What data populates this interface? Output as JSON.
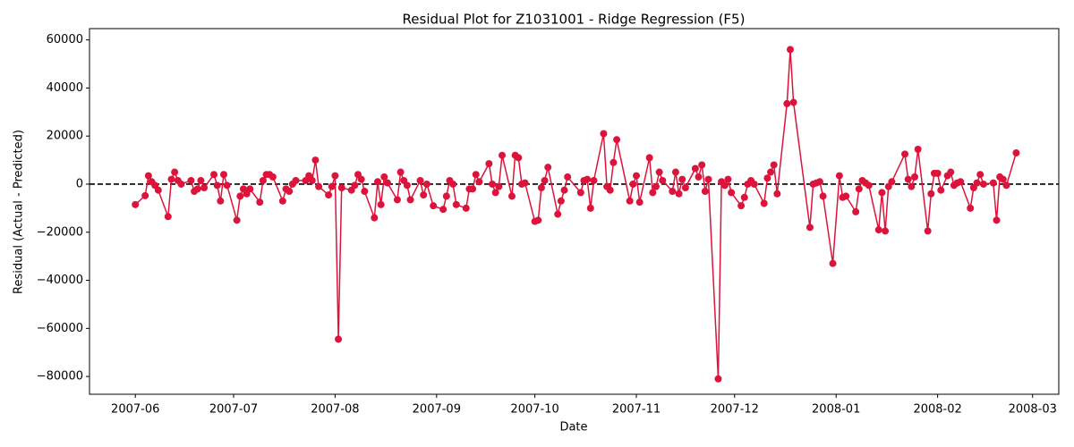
{
  "chart_data": {
    "type": "line",
    "title": "Residual Plot for Z1031001 - Ridge Regression (F5)",
    "x_label": "Date",
    "y_label": "Residual (Actual - Predicted)",
    "color": "#dc143c",
    "hline": 0,
    "xlim": [
      "2007-05-18",
      "2008-03-09"
    ],
    "xticks": [
      "2007-06",
      "2007-07",
      "2007-08",
      "2007-09",
      "2007-10",
      "2007-11",
      "2007-12",
      "2008-01",
      "2008-02",
      "2008-03"
    ],
    "ylim": [
      -87400,
      64700
    ],
    "yticks": [
      {
        "value": -80000,
        "label": "−80000"
      },
      {
        "value": -60000,
        "label": "−60000"
      },
      {
        "value": -40000,
        "label": "−40000"
      },
      {
        "value": -20000,
        "label": "−20000"
      },
      0,
      20000,
      40000,
      60000
    ],
    "x": [
      "2007-06-01",
      "2007-06-04",
      "2007-06-05",
      "2007-06-06",
      "2007-06-07",
      "2007-06-08",
      "2007-06-11",
      "2007-06-12",
      "2007-06-13",
      "2007-06-14",
      "2007-06-15",
      "2007-06-18",
      "2007-06-19",
      "2007-06-20",
      "2007-06-21",
      "2007-06-22",
      "2007-06-25",
      "2007-06-26",
      "2007-06-27",
      "2007-06-28",
      "2007-06-29",
      "2007-07-02",
      "2007-07-03",
      "2007-07-04",
      "2007-07-05",
      "2007-07-06",
      "2007-07-09",
      "2007-07-10",
      "2007-07-11",
      "2007-07-12",
      "2007-07-13",
      "2007-07-16",
      "2007-07-17",
      "2007-07-18",
      "2007-07-19",
      "2007-07-20",
      "2007-07-23",
      "2007-07-24",
      "2007-07-25",
      "2007-07-26",
      "2007-07-27",
      "2007-07-30",
      "2007-07-31",
      "2007-08-01",
      "2007-08-02",
      "2007-08-03",
      "2007-08-06",
      "2007-08-07",
      "2007-08-08",
      "2007-08-09",
      "2007-08-10",
      "2007-08-13",
      "2007-08-14",
      "2007-08-15",
      "2007-08-16",
      "2007-08-17",
      "2007-08-20",
      "2007-08-21",
      "2007-08-22",
      "2007-08-23",
      "2007-08-24",
      "2007-08-27",
      "2007-08-28",
      "2007-08-29",
      "2007-08-31",
      "2007-09-03",
      "2007-09-04",
      "2007-09-05",
      "2007-09-06",
      "2007-09-07",
      "2007-09-10",
      "2007-09-11",
      "2007-09-12",
      "2007-09-13",
      "2007-09-14",
      "2007-09-17",
      "2007-09-18",
      "2007-09-19",
      "2007-09-20",
      "2007-09-21",
      "2007-09-24",
      "2007-09-25",
      "2007-09-26",
      "2007-09-27",
      "2007-09-28",
      "2007-10-01",
      "2007-10-02",
      "2007-10-03",
      "2007-10-04",
      "2007-10-05",
      "2007-10-08",
      "2007-10-09",
      "2007-10-10",
      "2007-10-11",
      "2007-10-15",
      "2007-10-16",
      "2007-10-17",
      "2007-10-18",
      "2007-10-19",
      "2007-10-22",
      "2007-10-23",
      "2007-10-24",
      "2007-10-25",
      "2007-10-26",
      "2007-10-30",
      "2007-10-31",
      "2007-11-01",
      "2007-11-02",
      "2007-11-05",
      "2007-11-06",
      "2007-11-07",
      "2007-11-08",
      "2007-11-09",
      "2007-11-12",
      "2007-11-13",
      "2007-11-14",
      "2007-11-15",
      "2007-11-16",
      "2007-11-19",
      "2007-11-20",
      "2007-11-21",
      "2007-11-22",
      "2007-11-23",
      "2007-11-26",
      "2007-11-27",
      "2007-11-28",
      "2007-11-29",
      "2007-11-30",
      "2007-12-03",
      "2007-12-04",
      "2007-12-05",
      "2007-12-06",
      "2007-12-07",
      "2007-12-10",
      "2007-12-11",
      "2007-12-12",
      "2007-12-13",
      "2007-12-14",
      "2007-12-17",
      "2007-12-18",
      "2007-12-19",
      "2007-12-24",
      "2007-12-25",
      "2007-12-26",
      "2007-12-27",
      "2007-12-28",
      "2007-12-31",
      "2008-01-02",
      "2008-01-03",
      "2008-01-04",
      "2008-01-07",
      "2008-01-08",
      "2008-01-09",
      "2008-01-10",
      "2008-01-11",
      "2008-01-14",
      "2008-01-15",
      "2008-01-16",
      "2008-01-17",
      "2008-01-18",
      "2008-01-22",
      "2008-01-23",
      "2008-01-24",
      "2008-01-25",
      "2008-01-26",
      "2008-01-29",
      "2008-01-30",
      "2008-01-31",
      "2008-02-01",
      "2008-02-02",
      "2008-02-04",
      "2008-02-05",
      "2008-02-06",
      "2008-02-07",
      "2008-02-08",
      "2008-02-11",
      "2008-02-12",
      "2008-02-13",
      "2008-02-14",
      "2008-02-15",
      "2008-02-18",
      "2008-02-19",
      "2008-02-20",
      "2008-02-21",
      "2008-02-22",
      "2008-02-25"
    ],
    "values": [
      -8500,
      -4800,
      3500,
      1000,
      -500,
      -2500,
      -13500,
      2000,
      5000,
      1500,
      0,
      1500,
      -3000,
      -2000,
      1500,
      -1500,
      4000,
      -500,
      -7000,
      4000,
      -500,
      -15000,
      -5000,
      -2000,
      -4000,
      -2000,
      -7500,
      1500,
      4000,
      4000,
      3000,
      -7000,
      -2000,
      -3000,
      0,
      1500,
      1500,
      3500,
      1500,
      10000,
      -1000,
      -4500,
      -1000,
      3500,
      -64500,
      -1500,
      -2500,
      -500,
      4000,
      2000,
      -3000,
      -14000,
      1000,
      -8500,
      3000,
      500,
      -6500,
      5000,
      1500,
      -500,
      -6500,
      1500,
      -4500,
      0,
      -9000,
      -10500,
      -5000,
      1500,
      0,
      -8500,
      -10000,
      -2000,
      -2000,
      4000,
      1000,
      8500,
      0,
      -3500,
      -1000,
      12000,
      -5000,
      12000,
      11000,
      0,
      500,
      -15500,
      -15000,
      -1500,
      1500,
      7000,
      -12500,
      -7000,
      -2500,
      3000,
      -3500,
      1500,
      2000,
      -10000,
      1500,
      21000,
      -1000,
      -2500,
      9000,
      18500,
      -7000,
      0,
      3500,
      -7500,
      11000,
      -3500,
      -1000,
      5000,
      1500,
      -3000,
      5000,
      -4000,
      2000,
      -1500,
      6500,
      3000,
      8000,
      -3000,
      2000,
      -81000,
      1000,
      -500,
      2000,
      -3500,
      -9000,
      -5500,
      0,
      1500,
      0,
      -8000,
      2500,
      5000,
      8000,
      -4000,
      33500,
      56000,
      34000,
      -18000,
      0,
      500,
      1000,
      -5000,
      -33000,
      3500,
      -5500,
      -5000,
      -11500,
      -2000,
      1500,
      500,
      -500,
      -19000,
      -3500,
      -19500,
      -1000,
      1000,
      12500,
      2000,
      -1000,
      3000,
      14500,
      -19500,
      -4000,
      4500,
      4500,
      -2500,
      3500,
      5000,
      -500,
      500,
      1000,
      -10000,
      -1500,
      500,
      4000,
      0,
      500,
      -15000,
      3000,
      2000,
      -500,
      13000
    ]
  }
}
